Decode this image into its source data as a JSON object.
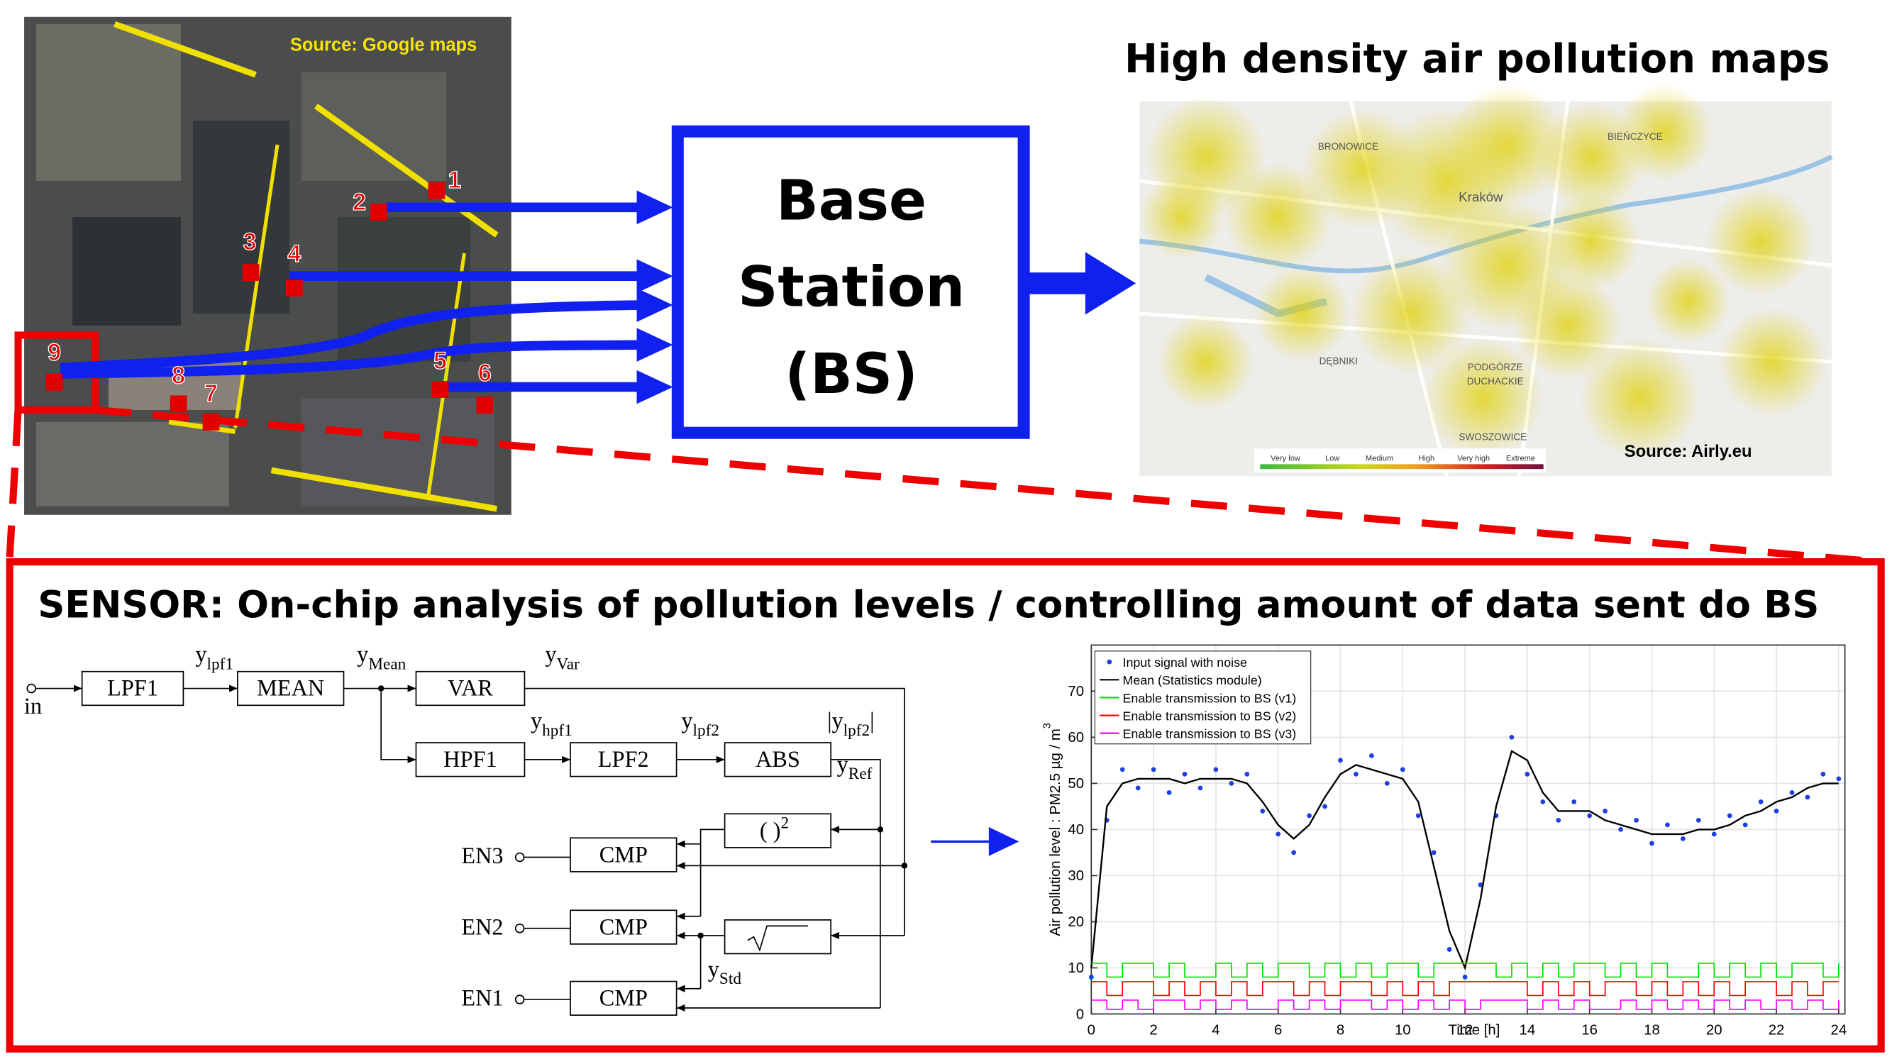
{
  "map_photo": {
    "source": "Source: Google maps",
    "markers": [
      "1",
      "2",
      "3",
      "4",
      "5",
      "6",
      "7",
      "8",
      "9"
    ]
  },
  "base_station": {
    "lines": [
      "Base",
      "Station",
      "(BS)"
    ]
  },
  "pollution_map": {
    "title": "High density air pollution maps",
    "source": "Source: Airly.eu",
    "legend": [
      "Very low",
      "Low",
      "Medium",
      "High",
      "Very high",
      "Extreme"
    ],
    "places": [
      "BRONOWICE",
      "Kraków",
      "DĘBNIKI",
      "PODGÓRZE",
      "DUCHACKIE",
      "SWOSZOWICE",
      "BIEŃCZYCE"
    ]
  },
  "sensor": {
    "title": "SENSOR: On-chip analysis of pollution levels / controlling amount of data sent do BS",
    "diagram": {
      "input": "in",
      "outputs": [
        "EN3",
        "EN2",
        "EN1"
      ],
      "blocks": [
        "LPF1",
        "MEAN",
        "VAR",
        "HPF1",
        "LPF2",
        "ABS",
        "CMP",
        "CMP",
        "CMP"
      ],
      "square": {
        "main": "( )",
        "sup": "2"
      },
      "signals": [
        {
          "main": "y",
          "sub": "lpf1"
        },
        {
          "main": "y",
          "sub": "Mean"
        },
        {
          "main": "y",
          "sub": "Var"
        },
        {
          "main": "y",
          "sub": "hpf1"
        },
        {
          "main": "y",
          "sub": "lpf2"
        },
        {
          "pre": "|",
          "main": "y",
          "sub": "lpf2",
          "post": "|"
        },
        {
          "main": "y",
          "sub": "Ref"
        },
        {
          "main": "y",
          "sub": "Std"
        }
      ]
    }
  },
  "chart_data": {
    "type": "line",
    "xlabel": "Time [h]",
    "ylabel": {
      "main": "Air pollution level : PM2.5 µg / m",
      "sup": "3"
    },
    "xlim": [
      0,
      24.2
    ],
    "ylim": [
      0,
      80
    ],
    "xticks": [
      0,
      2,
      4,
      6,
      8,
      10,
      12,
      14,
      16,
      18,
      20,
      22,
      24
    ],
    "yticks": [
      0,
      10,
      20,
      30,
      40,
      50,
      60,
      70
    ],
    "grid": true,
    "legend": "upper left",
    "x": [
      0,
      0.5,
      1,
      1.5,
      2,
      2.5,
      3,
      3.5,
      4,
      4.5,
      5,
      5.5,
      6,
      6.5,
      7,
      7.5,
      8,
      8.5,
      9,
      9.5,
      10,
      10.5,
      11,
      11.5,
      12,
      12.5,
      13,
      13.5,
      14,
      14.5,
      15,
      15.5,
      16,
      16.5,
      17,
      17.5,
      18,
      18.5,
      19,
      19.5,
      20,
      20.5,
      21,
      21.5,
      22,
      22.5,
      23,
      23.5,
      24
    ],
    "series": [
      {
        "name": "Input signal with noise",
        "color": "#1f3fe0",
        "style": "points",
        "values": [
          8,
          42,
          53,
          49,
          53,
          48,
          52,
          49,
          53,
          50,
          52,
          44,
          39,
          35,
          43,
          45,
          55,
          52,
          56,
          50,
          53,
          43,
          35,
          14,
          8,
          28,
          43,
          60,
          52,
          46,
          42,
          46,
          43,
          44,
          40,
          42,
          37,
          41,
          38,
          42,
          39,
          43,
          41,
          46,
          44,
          48,
          47,
          52,
          51
        ]
      },
      {
        "name": "Mean (Statistics module)",
        "color": "#000000",
        "style": "line",
        "values": [
          10,
          45,
          50,
          51,
          51,
          51,
          50,
          51,
          51,
          51,
          50,
          46,
          41,
          38,
          41,
          47,
          52,
          54,
          53,
          52,
          51,
          46,
          32,
          18,
          10,
          25,
          45,
          57,
          55,
          48,
          44,
          44,
          44,
          42,
          41,
          40,
          39,
          39,
          39,
          40,
          40,
          41,
          43,
          44,
          46,
          47,
          49,
          50,
          50
        ]
      },
      {
        "name": "Enable transmission to BS (v1)",
        "color": "#00e000",
        "style": "step",
        "values": [
          11,
          8,
          11,
          11,
          8,
          11,
          8,
          8,
          11,
          8,
          11,
          8,
          11,
          11,
          8,
          11,
          8,
          11,
          8,
          11,
          11,
          8,
          11,
          11,
          11,
          11,
          8,
          11,
          8,
          11,
          8,
          11,
          11,
          8,
          11,
          8,
          11,
          8,
          8,
          11,
          8,
          11,
          8,
          11,
          8,
          11,
          11,
          8,
          11
        ]
      },
      {
        "name": "Enable transmission to BS (v2)",
        "color": "#ff0000",
        "style": "step",
        "values": [
          7,
          4,
          7,
          7,
          4,
          7,
          4,
          7,
          4,
          7,
          4,
          7,
          7,
          4,
          7,
          4,
          7,
          7,
          4,
          7,
          4,
          7,
          4,
          7,
          7,
          7,
          7,
          7,
          4,
          7,
          4,
          7,
          4,
          7,
          7,
          4,
          7,
          4,
          7,
          4,
          7,
          4,
          7,
          7,
          4,
          7,
          4,
          7,
          7
        ]
      },
      {
        "name": "Enable transmission to BS (v3)",
        "color": "#ff00ff",
        "style": "step",
        "values": [
          3,
          1,
          3,
          1,
          3,
          3,
          1,
          3,
          1,
          3,
          1,
          1,
          3,
          1,
          3,
          1,
          3,
          3,
          1,
          3,
          1,
          3,
          1,
          3,
          1,
          3,
          3,
          3,
          1,
          3,
          1,
          3,
          1,
          1,
          3,
          1,
          3,
          1,
          3,
          1,
          3,
          1,
          3,
          1,
          3,
          1,
          3,
          1,
          3
        ]
      }
    ]
  }
}
